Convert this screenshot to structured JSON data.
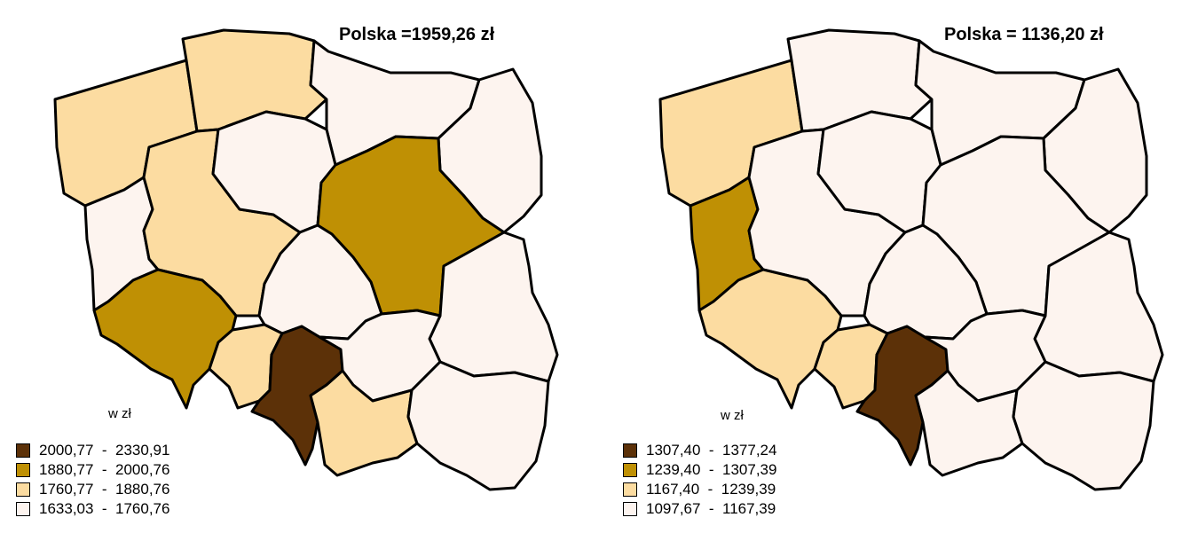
{
  "colors": {
    "class1": "#5c3108",
    "class2": "#bf9004",
    "class3": "#fcdca1",
    "class4": "#fdf4ef",
    "border": "#000000"
  },
  "maps": [
    {
      "title": "Polska =1959,26 zł",
      "unit_label": "w zł",
      "legend": [
        {
          "label": "2000,77  -  2330,91",
          "color": "#5c3108"
        },
        {
          "label": "1880,77  -  2000,76",
          "color": "#bf9004"
        },
        {
          "label": "1760,77  -  1880,76",
          "color": "#fcdca1"
        },
        {
          "label": "1633,03  -  1760,76",
          "color": "#fdf4ef"
        }
      ],
      "region_classes": {
        "zachodniopomorskie": 3,
        "pomorskie": 3,
        "warminsko-mazurskie": 4,
        "podlaskie": 4,
        "lubuskie": 4,
        "wielkopolskie": 3,
        "kujawsko-pomorskie": 4,
        "mazowieckie": 2,
        "lodzkie": 4,
        "lubelskie": 4,
        "dolnoslaskie": 2,
        "opolskie": 3,
        "slaskie": 1,
        "swietokrzyskie": 4,
        "malopolskie": 3,
        "podkarpackie": 4
      }
    },
    {
      "title": "Polska = 1136,20 zł",
      "unit_label": "w zł",
      "legend": [
        {
          "label": "1307,40  -  1377,24",
          "color": "#5c3108"
        },
        {
          "label": "1239,40  -  1307,39",
          "color": "#bf9004"
        },
        {
          "label": "1167,40  -  1239,39",
          "color": "#fcdca1"
        },
        {
          "label": "1097,67  -  1167,39",
          "color": "#fdf4ef"
        }
      ],
      "region_classes": {
        "zachodniopomorskie": 3,
        "pomorskie": 4,
        "warminsko-mazurskie": 4,
        "podlaskie": 4,
        "lubuskie": 2,
        "wielkopolskie": 4,
        "kujawsko-pomorskie": 4,
        "mazowieckie": 4,
        "lodzkie": 4,
        "lubelskie": 4,
        "dolnoslaskie": 3,
        "opolskie": 3,
        "slaskie": 1,
        "swietokrzyskie": 4,
        "malopolskie": 4,
        "podkarpackie": 4
      }
    }
  ]
}
